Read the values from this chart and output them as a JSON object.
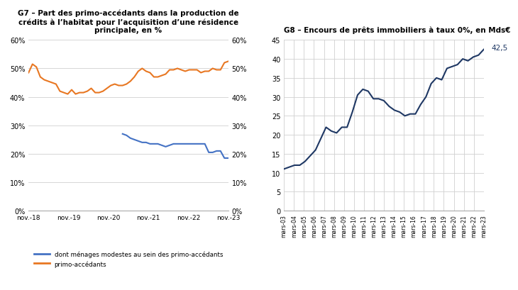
{
  "g7_title": "G7 – Part des primo-accédants dans la production de\ncrédits à l’habitat pour l’acquisition d’une résidence\nprincipale, en %",
  "g8_title": "G8 – Encours de prêts immobiliers à taux 0%, en Mds€",
  "g7_xticks": [
    "nov.-18",
    "nov.-19",
    "nov.-20",
    "nov.-21",
    "nov.-22",
    "nov.-23"
  ],
  "g7_ylim": [
    0,
    0.6
  ],
  "g7_yticks": [
    0,
    0.1,
    0.2,
    0.3,
    0.4,
    0.5,
    0.6
  ],
  "g7_ytick_labels": [
    "0%",
    "10%",
    "20%",
    "30%",
    "40%",
    "50%",
    "60%"
  ],
  "orange_color": "#E87722",
  "blue_color": "#4472C4",
  "navy_color": "#1F3864",
  "g7_orange": [
    0.485,
    0.515,
    0.505,
    0.47,
    0.46,
    0.455,
    0.45,
    0.445,
    0.42,
    0.415,
    0.41,
    0.425,
    0.41,
    0.415,
    0.415,
    0.42,
    0.43,
    0.415,
    0.415,
    0.42,
    0.43,
    0.44,
    0.445,
    0.44,
    0.44,
    0.445,
    0.455,
    0.47,
    0.49,
    0.5,
    0.49,
    0.485,
    0.47,
    0.47,
    0.475,
    0.48,
    0.495,
    0.495,
    0.5,
    0.495,
    0.49,
    0.495,
    0.495,
    0.495,
    0.485,
    0.49,
    0.49,
    0.5,
    0.495,
    0.495,
    0.52,
    0.525
  ],
  "g7_blue": [
    null,
    null,
    null,
    null,
    null,
    null,
    null,
    null,
    null,
    null,
    null,
    null,
    null,
    null,
    null,
    null,
    null,
    null,
    null,
    null,
    null,
    null,
    null,
    null,
    0.27,
    0.265,
    0.255,
    0.25,
    0.245,
    0.24,
    0.24,
    0.235,
    0.235,
    0.235,
    0.23,
    0.225,
    0.23,
    0.235,
    0.235,
    0.235,
    0.235,
    0.235,
    0.235,
    0.235,
    0.235,
    0.235,
    0.205,
    0.205,
    0.21,
    0.21,
    0.185,
    0.185
  ],
  "g8_xtick_labels": [
    "mars-03",
    "mars-04",
    "mars-05",
    "mars-06",
    "mars-07",
    "mars-08",
    "mars-09",
    "mars-10",
    "mars-11",
    "mars-12",
    "mars-13",
    "mars-14",
    "mars-15",
    "mars-16",
    "mars-17",
    "mars-18",
    "mars-19",
    "mars-20",
    "mars-21",
    "mars-22",
    "mars-23"
  ],
  "g8_ylim": [
    0,
    45
  ],
  "g8_yticks": [
    0,
    5,
    10,
    15,
    20,
    25,
    30,
    35,
    40,
    45
  ],
  "g8_values": [
    11.0,
    11.5,
    12.0,
    12.0,
    13.0,
    14.5,
    16.0,
    19.0,
    22.0,
    21.0,
    20.5,
    22.0,
    22.0,
    26.0,
    30.5,
    32.0,
    31.5,
    29.5,
    29.5,
    29.0,
    27.5,
    26.5,
    26.0,
    25.0,
    25.5,
    25.5,
    28.0,
    30.0,
    33.5,
    35.0,
    34.5,
    37.5,
    38.0,
    38.5,
    40.0,
    39.5,
    40.5,
    41.0,
    42.5
  ],
  "g8_last_label": "42,5",
  "g7_legend_blue": "dont ménages modestes au sein des primo-accédants",
  "g7_legend_orange": "primo-accédants",
  "background_color": "#ffffff",
  "grid_color": "#d0d0d0"
}
